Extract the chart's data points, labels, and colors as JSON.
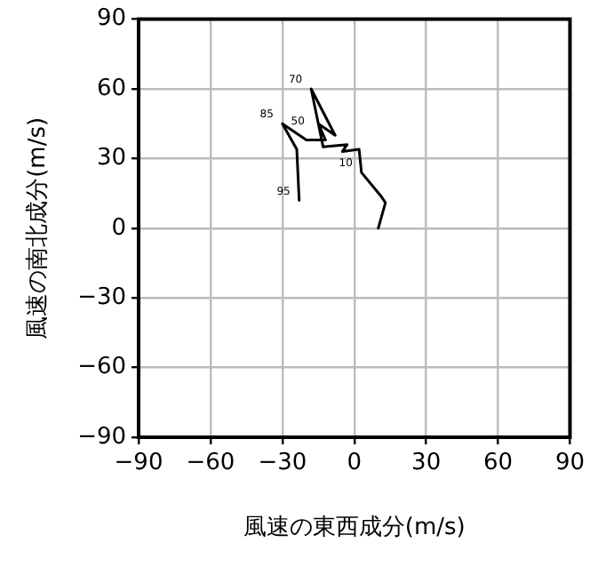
{
  "chart_data": {
    "type": "line",
    "xlabel": "風速の東西成分(m/s)",
    "ylabel": "風速の南北成分(m/s)",
    "x": [
      10,
      13,
      11,
      3,
      2,
      -5,
      -3,
      -13,
      -18,
      -8,
      -15,
      -12,
      -20,
      -30,
      -24,
      -23
    ],
    "series": [
      {
        "color": "#000000",
        "values": [
          0,
          11,
          14,
          24,
          34,
          33,
          36,
          35,
          60,
          40,
          45,
          38,
          38,
          45,
          34,
          12
        ]
      }
    ],
    "xlim": [
      -90,
      90
    ],
    "ylim": [
      -90,
      90
    ],
    "xticks": [
      {
        "value": -90,
        "label": "−90"
      },
      {
        "value": -60,
        "label": "−60"
      },
      {
        "value": -30,
        "label": "−30"
      },
      0,
      30,
      60,
      90
    ],
    "yticks": [
      {
        "value": -90,
        "label": "−90"
      },
      {
        "value": -60,
        "label": "−60"
      },
      {
        "value": -30,
        "label": "−30"
      },
      0,
      30,
      60,
      90
    ],
    "grid": true,
    "legend": false,
    "marker": "none",
    "line_style": "solid",
    "annotations": [
      {
        "text": "85",
        "x": -30,
        "y": 45
      },
      {
        "text": "70",
        "x": -18,
        "y": 60
      },
      {
        "text": "50",
        "x": -17,
        "y": 42
      },
      {
        "text": "10",
        "x": 3,
        "y": 24
      },
      {
        "text": "95",
        "x": -23,
        "y": 12
      }
    ]
  }
}
